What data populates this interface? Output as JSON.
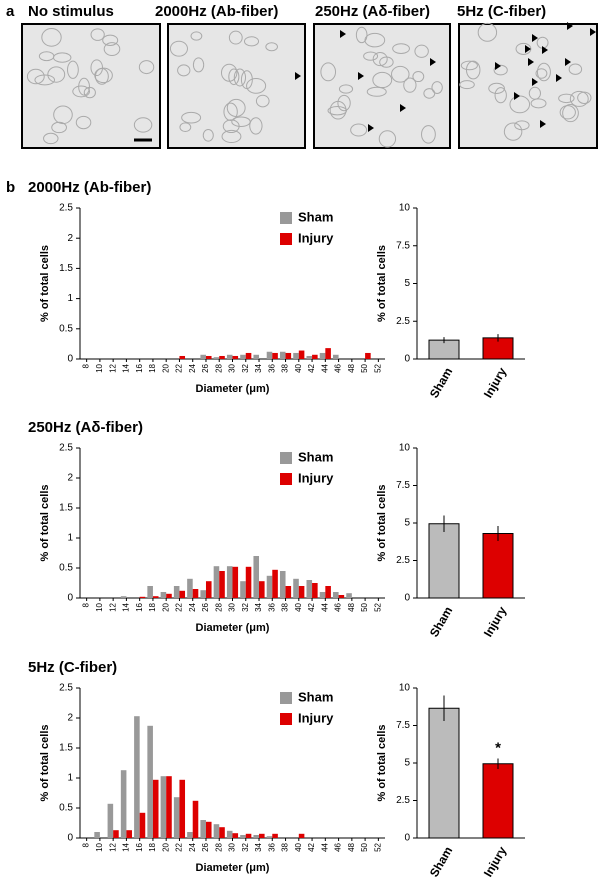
{
  "panel_labels": [
    "a",
    "b"
  ],
  "micrographs": [
    {
      "title": "No stimulus"
    },
    {
      "title": "2000Hz (Ab-fiber)"
    },
    {
      "title": "250Hz (Aδ-fiber)"
    },
    {
      "title": "5Hz (C-fiber)"
    }
  ],
  "chart_data": [
    {
      "type": "bar",
      "title": "2000Hz (Ab-fiber)",
      "x_label": "Diameter (μm)",
      "y_label": "% of total cells",
      "categories": [
        8,
        10,
        12,
        14,
        16,
        18,
        20,
        22,
        24,
        26,
        28,
        30,
        32,
        34,
        36,
        38,
        40,
        42,
        44,
        46,
        48,
        50,
        52
      ],
      "series": [
        {
          "name": "Sham",
          "color": "#999999",
          "values": [
            0,
            0,
            0,
            0,
            0,
            0,
            0,
            0,
            0,
            0.07,
            0.03,
            0.07,
            0.07,
            0.07,
            0.12,
            0.12,
            0.1,
            0.05,
            0.1,
            0.07,
            0,
            0,
            0
          ]
        },
        {
          "name": "Injury",
          "color": "#dd0000",
          "values": [
            0,
            0,
            0,
            0,
            0,
            0,
            0,
            0.05,
            0,
            0.05,
            0.05,
            0.05,
            0.1,
            0,
            0.1,
            0.1,
            0.14,
            0.07,
            0.18,
            0,
            0,
            0.1,
            0
          ]
        }
      ],
      "ylim": [
        0,
        2.5
      ],
      "yticks": [
        0,
        0.5,
        1,
        1.5,
        2,
        2.5
      ],
      "legend": "upper right",
      "grid": false
    },
    {
      "type": "bar",
      "y_label": "% of total cells",
      "categories": [
        "Sham",
        "Injury"
      ],
      "values": [
        1.25,
        1.4
      ],
      "errors": [
        0.2,
        0.25
      ],
      "colors": [
        "#bbbbbb",
        "#dd0000"
      ],
      "ylim": [
        0,
        10
      ],
      "yticks": [
        0,
        2.5,
        5,
        7.5,
        10
      ],
      "grid": false
    },
    {
      "type": "bar",
      "title": "250Hz (Aδ-fiber)",
      "x_label": "Diameter (μm)",
      "y_label": "% of total cells",
      "categories": [
        8,
        10,
        12,
        14,
        16,
        18,
        20,
        22,
        24,
        26,
        28,
        30,
        32,
        34,
        36,
        38,
        40,
        42,
        44,
        46,
        48,
        50,
        52
      ],
      "series": [
        {
          "name": "Sham",
          "color": "#999999",
          "values": [
            0,
            0,
            0,
            0.03,
            0,
            0.2,
            0.1,
            0.2,
            0.32,
            0.13,
            0.53,
            0.53,
            0.28,
            0.7,
            0.37,
            0.45,
            0.32,
            0.3,
            0.1,
            0.1,
            0.08,
            0,
            0
          ]
        },
        {
          "name": "Injury",
          "color": "#dd0000",
          "values": [
            0,
            0,
            0,
            0,
            0.02,
            0.03,
            0.07,
            0.12,
            0.15,
            0.28,
            0.45,
            0.52,
            0.52,
            0.28,
            0.47,
            0.2,
            0.2,
            0.25,
            0.2,
            0.05,
            0,
            0,
            0
          ]
        }
      ],
      "ylim": [
        0,
        2.5
      ],
      "yticks": [
        0,
        0.5,
        1,
        1.5,
        2,
        2.5
      ],
      "legend": "upper right",
      "grid": false
    },
    {
      "type": "bar",
      "y_label": "% of total cells",
      "categories": [
        "Sham",
        "Injury"
      ],
      "values": [
        4.95,
        4.3
      ],
      "errors": [
        0.55,
        0.5
      ],
      "colors": [
        "#bbbbbb",
        "#dd0000"
      ],
      "ylim": [
        0,
        10
      ],
      "yticks": [
        0,
        2.5,
        5,
        7.5,
        10
      ],
      "grid": false
    },
    {
      "type": "bar",
      "title": "5Hz (C-fiber)",
      "x_label": "Diameter (μm)",
      "y_label": "% of total cells",
      "categories": [
        8,
        10,
        12,
        14,
        16,
        18,
        20,
        22,
        24,
        26,
        28,
        30,
        32,
        34,
        36,
        38,
        40,
        42,
        44,
        46,
        48,
        50,
        52
      ],
      "series": [
        {
          "name": "Sham",
          "color": "#999999",
          "values": [
            0,
            0.1,
            0.57,
            1.13,
            2.03,
            1.87,
            1.03,
            0.68,
            0.1,
            0.3,
            0.23,
            0.12,
            0.05,
            0.05,
            0.03,
            0,
            0,
            0,
            0,
            0,
            0,
            0,
            0
          ]
        },
        {
          "name": "Injury",
          "color": "#dd0000",
          "values": [
            0,
            0,
            0.13,
            0.13,
            0.42,
            0.97,
            1.03,
            0.97,
            0.62,
            0.27,
            0.18,
            0.08,
            0.07,
            0.07,
            0.07,
            0,
            0.07,
            0,
            0,
            0,
            0,
            0,
            0
          ]
        }
      ],
      "ylim": [
        0,
        2.5
      ],
      "yticks": [
        0,
        0.5,
        1,
        1.5,
        2,
        2.5
      ],
      "legend": "upper right",
      "grid": false
    },
    {
      "type": "bar",
      "y_label": "% of total cells",
      "categories": [
        "Sham",
        "Injury"
      ],
      "values": [
        8.65,
        4.95
      ],
      "errors": [
        0.85,
        0.35
      ],
      "colors": [
        "#bbbbbb",
        "#dd0000"
      ],
      "ylim": [
        0,
        10
      ],
      "yticks": [
        0,
        2.5,
        5,
        7.5,
        10
      ],
      "grid": false,
      "annotation": "*"
    }
  ]
}
